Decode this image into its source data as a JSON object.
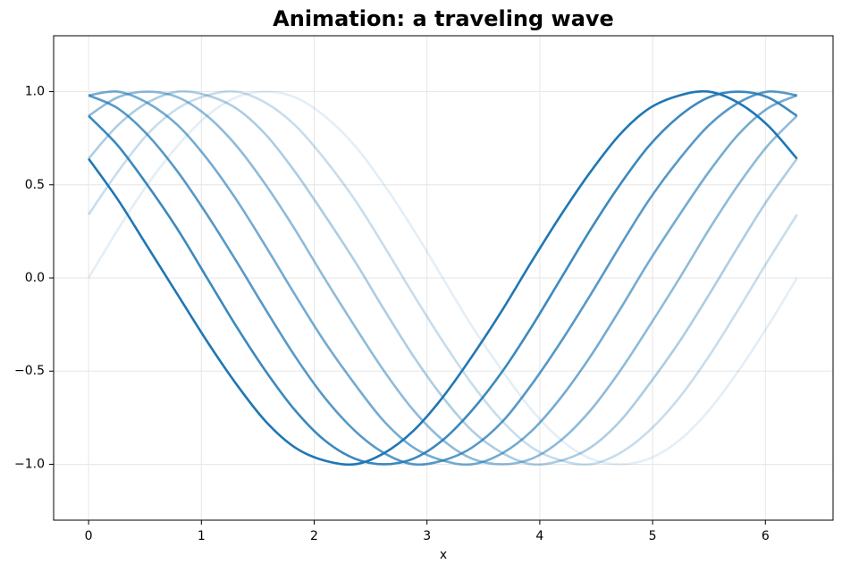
{
  "chart_data": {
    "type": "line",
    "title": "Animation: a traveling wave",
    "x_label": "x",
    "x": [
      0,
      0.26,
      0.52,
      0.79,
      1.05,
      1.31,
      1.57,
      1.83,
      2.09,
      2.36,
      2.62,
      2.88,
      3.14,
      3.4,
      3.67,
      3.93,
      4.19,
      4.45,
      4.71,
      4.97,
      5.24,
      5.5,
      5.76,
      6.02,
      6.28
    ],
    "series": [
      {
        "color": "#1f77b4",
        "opacity": 0.12,
        "values": [
          0,
          0.26,
          0.5,
          0.71,
          0.87,
          0.97,
          1,
          0.97,
          0.87,
          0.71,
          0.5,
          0.26,
          0,
          -0.26,
          -0.5,
          -0.71,
          -0.87,
          -0.97,
          -1,
          -0.97,
          -0.87,
          -0.71,
          -0.5,
          -0.26,
          0
        ]
      },
      {
        "color": "#1f77b4",
        "opacity": 0.25,
        "values": [
          0.34,
          0.57,
          0.77,
          0.91,
          0.98,
          1.0,
          0.94,
          0.82,
          0.64,
          0.42,
          0.17,
          -0.09,
          -0.34,
          -0.57,
          -0.77,
          -0.91,
          -0.98,
          -1.0,
          -0.94,
          -0.82,
          -0.64,
          -0.42,
          -0.17,
          0.09,
          0.34
        ]
      },
      {
        "color": "#1f77b4",
        "opacity": 0.37,
        "values": [
          0.64,
          0.82,
          0.94,
          1.0,
          0.98,
          0.91,
          0.77,
          0.57,
          0.34,
          0.09,
          -0.17,
          -0.42,
          -0.64,
          -0.82,
          -0.94,
          -1.0,
          -0.98,
          -0.91,
          -0.77,
          -0.57,
          -0.34,
          -0.09,
          0.17,
          0.42,
          0.64
        ]
      },
      {
        "color": "#1f77b4",
        "opacity": 0.5,
        "values": [
          0.87,
          0.97,
          1,
          0.97,
          0.87,
          0.71,
          0.5,
          0.26,
          0,
          -0.26,
          -0.5,
          -0.71,
          -0.87,
          -0.97,
          -1,
          -0.97,
          -0.87,
          -0.71,
          -0.5,
          -0.26,
          0,
          0.26,
          0.5,
          0.71,
          0.87
        ]
      },
      {
        "color": "#1f77b4",
        "opacity": 0.62,
        "values": [
          0.98,
          1.0,
          0.94,
          0.82,
          0.64,
          0.42,
          0.17,
          -0.09,
          -0.34,
          -0.57,
          -0.77,
          -0.91,
          -0.98,
          -1.0,
          -0.94,
          -0.82,
          -0.64,
          -0.42,
          -0.17,
          0.09,
          0.34,
          0.57,
          0.77,
          0.91,
          0.98
        ]
      },
      {
        "color": "#1f77b4",
        "opacity": 0.75,
        "values": [
          0.98,
          0.91,
          0.77,
          0.57,
          0.34,
          0.09,
          -0.17,
          -0.42,
          -0.64,
          -0.82,
          -0.94,
          -1.0,
          -0.98,
          -0.91,
          -0.77,
          -0.57,
          -0.34,
          -0.09,
          0.17,
          0.42,
          0.64,
          0.82,
          0.94,
          1.0,
          0.98
        ]
      },
      {
        "color": "#1f77b4",
        "opacity": 0.87,
        "values": [
          0.87,
          0.71,
          0.5,
          0.26,
          0,
          -0.26,
          -0.5,
          -0.71,
          -0.87,
          -0.97,
          -1,
          -0.97,
          -0.87,
          -0.71,
          -0.5,
          -0.26,
          0,
          0.26,
          0.5,
          0.71,
          0.87,
          0.97,
          1,
          0.97,
          0.87
        ]
      },
      {
        "color": "#1f77b4",
        "opacity": 1.0,
        "values": [
          0.64,
          0.42,
          0.17,
          -0.09,
          -0.34,
          -0.57,
          -0.77,
          -0.91,
          -0.98,
          -1.0,
          -0.94,
          -0.82,
          -0.64,
          -0.42,
          -0.17,
          0.09,
          0.34,
          0.57,
          0.77,
          0.91,
          0.98,
          1.0,
          0.94,
          0.82,
          0.64
        ]
      }
    ],
    "xlim": [
      -0.31,
      6.6
    ],
    "xticks": [
      0,
      1,
      2,
      3,
      4,
      5,
      6
    ],
    "ylim": [
      -1.3,
      1.3
    ],
    "yticks": [
      {
        "value": -1,
        "label": "−1.0"
      },
      {
        "value": -0.5,
        "label": "−0.5"
      },
      {
        "value": 0,
        "label": "0.0"
      },
      {
        "value": 0.5,
        "label": "0.5"
      },
      {
        "value": 1,
        "label": "1.0"
      }
    ],
    "grid": true
  }
}
